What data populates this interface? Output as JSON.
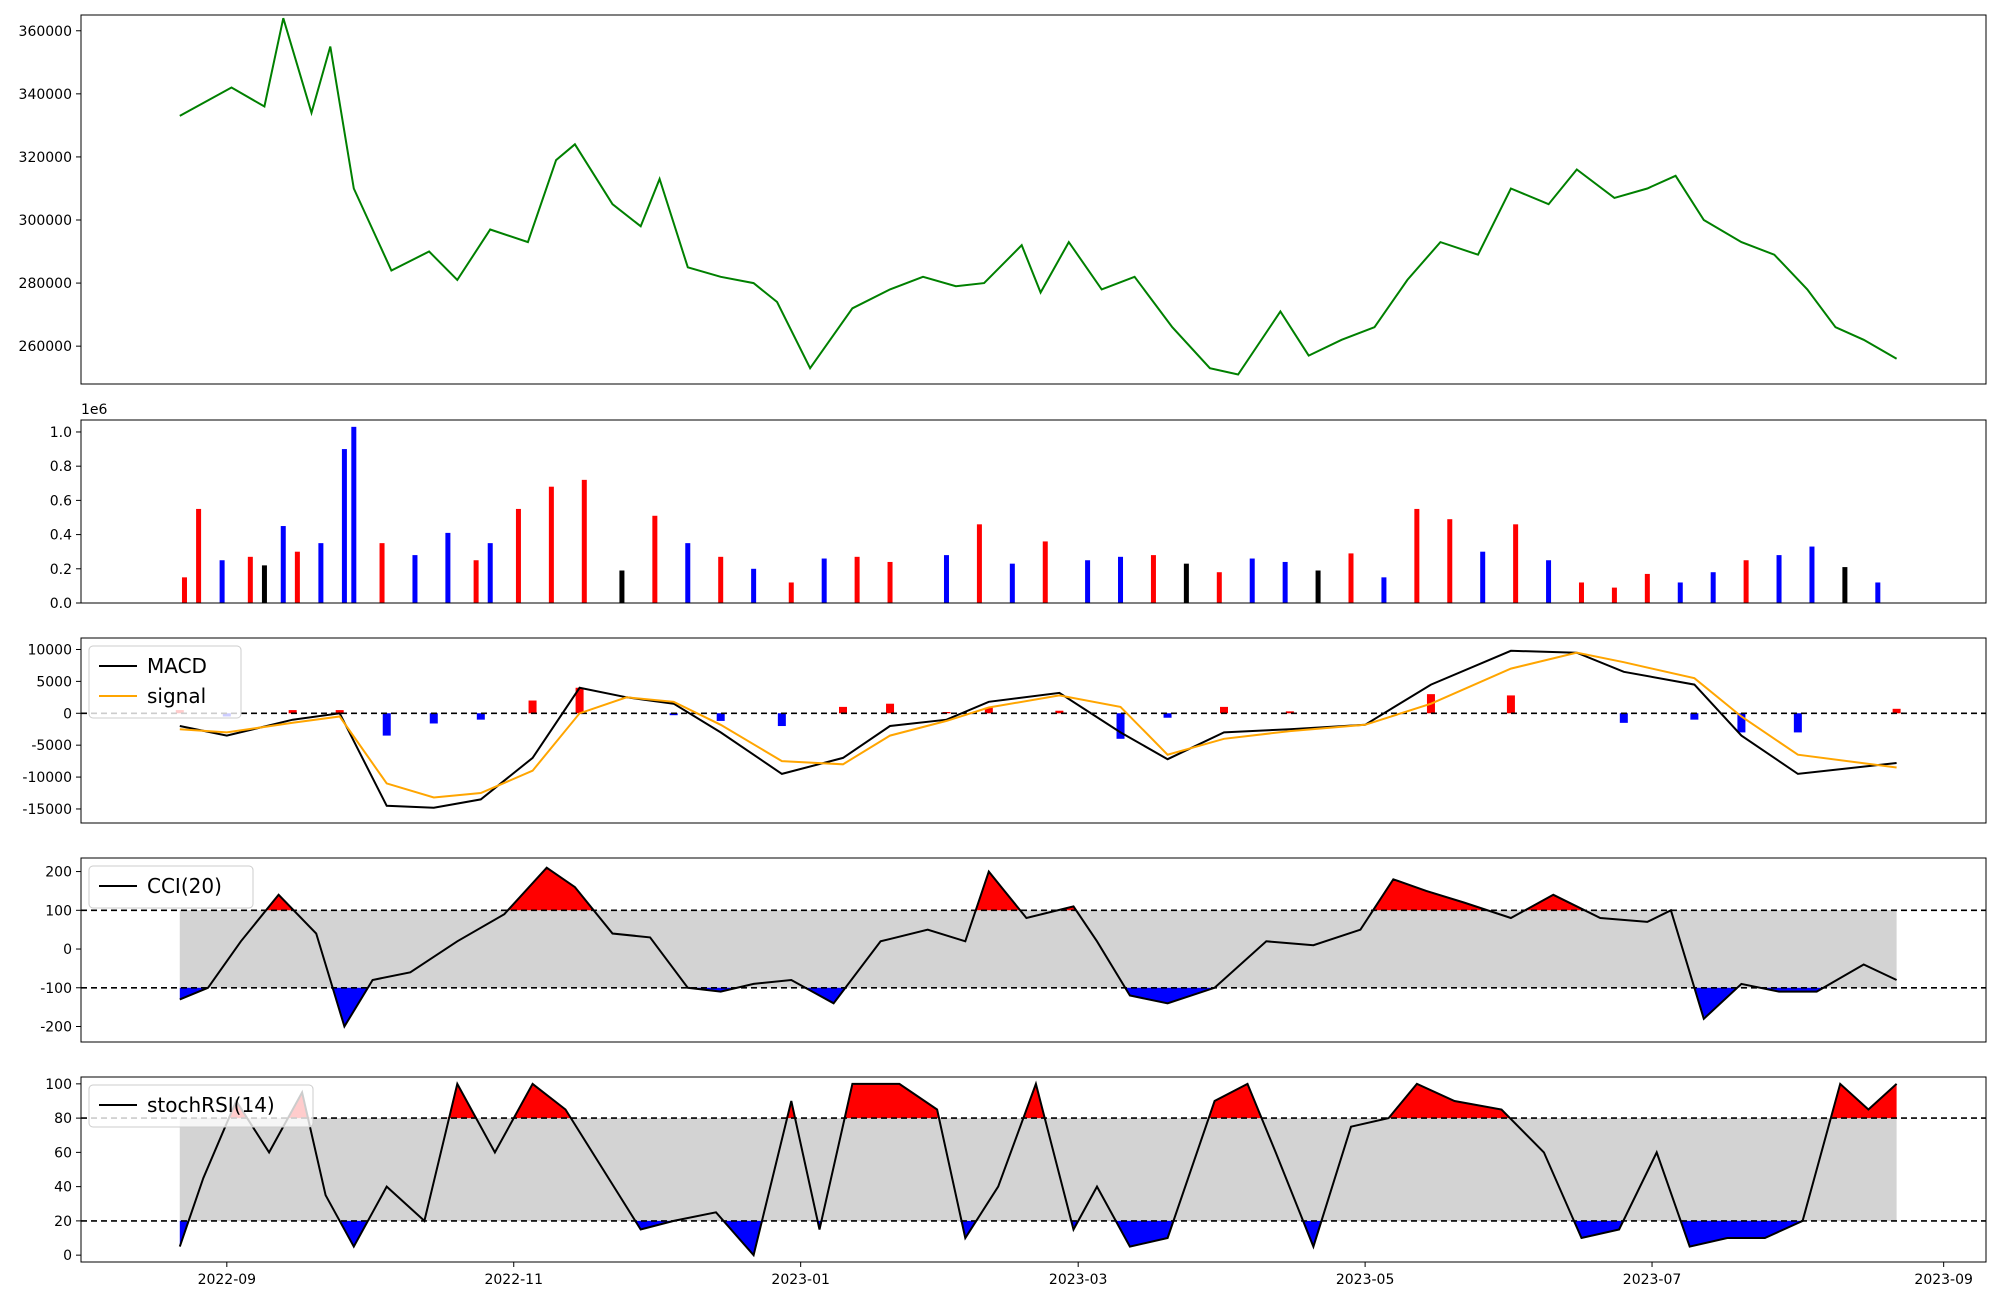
{
  "x_tick_labels": [
    "2022-09",
    "2022-11",
    "2023-01",
    "2023-03",
    "2023-05",
    "2023-07",
    "2023-09"
  ],
  "chart_data": [
    {
      "panel": "price",
      "type": "line",
      "color": "#008000",
      "ylim": [
        248000,
        365000
      ],
      "y_ticks": [
        "260000",
        "280000",
        "300000",
        "320000",
        "340000",
        "360000"
      ],
      "y_tick_values": [
        260000,
        280000,
        300000,
        320000,
        340000,
        360000
      ],
      "x": [
        "2022-08-22",
        "2022-09-02",
        "2022-09-09",
        "2022-09-13",
        "2022-09-19",
        "2022-09-23",
        "2022-09-28",
        "2022-10-06",
        "2022-10-14",
        "2022-10-20",
        "2022-10-27",
        "2022-11-04",
        "2022-11-10",
        "2022-11-14",
        "2022-11-22",
        "2022-11-28",
        "2022-12-02",
        "2022-12-08",
        "2022-12-15",
        "2022-12-22",
        "2022-12-27",
        "2023-01-03",
        "2023-01-12",
        "2023-01-20",
        "2023-01-27",
        "2023-02-03",
        "2023-02-09",
        "2023-02-17",
        "2023-02-21",
        "2023-02-27",
        "2023-03-06",
        "2023-03-13",
        "2023-03-21",
        "2023-03-29",
        "2023-04-04",
        "2023-04-13",
        "2023-04-19",
        "2023-04-26",
        "2023-05-03",
        "2023-05-10",
        "2023-05-17",
        "2023-05-25",
        "2023-06-01",
        "2023-06-09",
        "2023-06-15",
        "2023-06-23",
        "2023-06-30",
        "2023-07-06",
        "2023-07-12",
        "2023-07-20",
        "2023-07-27",
        "2023-08-03",
        "2023-08-09",
        "2023-08-15",
        "2023-08-22"
      ],
      "values": [
        333000,
        342000,
        336000,
        364000,
        334000,
        355000,
        310000,
        284000,
        290000,
        281000,
        297000,
        293000,
        319000,
        324000,
        305000,
        298000,
        313000,
        285000,
        282000,
        280000,
        274000,
        253000,
        272000,
        278000,
        282000,
        279000,
        280000,
        292000,
        277000,
        293000,
        278000,
        282000,
        266000,
        253000,
        251000,
        271000,
        257000,
        262000,
        266000,
        281000,
        293000,
        289000,
        310000,
        305000,
        316000,
        307000,
        310000,
        314000,
        300000,
        293000,
        289000,
        278000,
        266000,
        262000,
        256000
      ]
    },
    {
      "panel": "volume",
      "type": "bar",
      "offset_text": "1e6",
      "ylim": [
        0,
        1.07
      ],
      "y_ticks": [
        "0.0",
        "0.2",
        "0.4",
        "0.6",
        "0.8",
        "1.0"
      ],
      "y_tick_values": [
        0,
        0.2,
        0.4,
        0.6,
        0.8,
        1.0
      ],
      "bar_colors": {
        "up": "#ff0000",
        "down": "#0000ff",
        "neutral": "#000000"
      },
      "x": [
        "2022-08-23",
        "2022-08-26",
        "2022-08-31",
        "2022-09-06",
        "2022-09-09",
        "2022-09-13",
        "2022-09-16",
        "2022-09-21",
        "2022-09-26",
        "2022-09-28",
        "2022-10-04",
        "2022-10-11",
        "2022-10-18",
        "2022-10-24",
        "2022-10-27",
        "2022-11-02",
        "2022-11-09",
        "2022-11-16",
        "2022-11-24",
        "2022-12-01",
        "2022-12-08",
        "2022-12-15",
        "2022-12-22",
        "2022-12-30",
        "2023-01-06",
        "2023-01-13",
        "2023-01-20",
        "2023-02-01",
        "2023-02-08",
        "2023-02-15",
        "2023-02-22",
        "2023-03-03",
        "2023-03-10",
        "2023-03-17",
        "2023-03-24",
        "2023-03-31",
        "2023-04-07",
        "2023-04-14",
        "2023-04-21",
        "2023-04-28",
        "2023-05-05",
        "2023-05-12",
        "2023-05-19",
        "2023-05-26",
        "2023-06-02",
        "2023-06-09",
        "2023-06-16",
        "2023-06-23",
        "2023-06-30",
        "2023-07-07",
        "2023-07-14",
        "2023-07-21",
        "2023-07-28",
        "2023-08-04",
        "2023-08-11",
        "2023-08-18"
      ],
      "values": [
        0.15,
        0.55,
        0.25,
        0.27,
        0.22,
        0.45,
        0.3,
        0.35,
        0.9,
        1.03,
        0.35,
        0.28,
        0.41,
        0.25,
        0.35,
        0.55,
        0.68,
        0.72,
        0.19,
        0.51,
        0.35,
        0.27,
        0.2,
        0.12,
        0.26,
        0.27,
        0.24,
        0.28,
        0.46,
        0.23,
        0.36,
        0.25,
        0.27,
        0.28,
        0.23,
        0.18,
        0.26,
        0.24,
        0.19,
        0.29,
        0.15,
        0.55,
        0.49,
        0.3,
        0.46,
        0.25,
        0.12,
        0.09,
        0.17,
        0.12,
        0.18,
        0.25,
        0.28,
        0.33,
        0.21,
        0.12
      ],
      "colors": [
        "up",
        "up",
        "down",
        "up",
        "neutral",
        "down",
        "up",
        "down",
        "down",
        "down",
        "up",
        "down",
        "down",
        "up",
        "down",
        "up",
        "up",
        "up",
        "neutral",
        "up",
        "down",
        "up",
        "down",
        "up",
        "down",
        "up",
        "up",
        "down",
        "up",
        "down",
        "up",
        "down",
        "down",
        "up",
        "neutral",
        "up",
        "down",
        "down",
        "neutral",
        "up",
        "down",
        "up",
        "up",
        "down",
        "up",
        "down",
        "up",
        "up",
        "up",
        "down",
        "down",
        "up",
        "down",
        "down",
        "neutral",
        "down"
      ]
    },
    {
      "panel": "macd",
      "type": "line",
      "ylim": [
        -17200,
        11800
      ],
      "y_ticks": [
        "10000",
        "5000",
        "0",
        "-5000",
        "-10000",
        "-15000"
      ],
      "y_tick_values": [
        10000,
        5000,
        0,
        -5000,
        -10000,
        -15000
      ],
      "zero_line": 0,
      "legend": {
        "position": "top-left",
        "entries": [
          "MACD",
          "signal"
        ]
      },
      "x": [
        "2022-08-22",
        "2022-09-01",
        "2022-09-15",
        "2022-09-25",
        "2022-10-05",
        "2022-10-15",
        "2022-10-25",
        "2022-11-05",
        "2022-11-15",
        "2022-11-25",
        "2022-12-05",
        "2022-12-15",
        "2022-12-28",
        "2023-01-10",
        "2023-01-20",
        "2023-02-01",
        "2023-02-10",
        "2023-02-25",
        "2023-03-10",
        "2023-03-20",
        "2023-04-01",
        "2023-04-15",
        "2023-05-01",
        "2023-05-15",
        "2023-06-01",
        "2023-06-15",
        "2023-06-25",
        "2023-07-10",
        "2023-07-20",
        "2023-08-01",
        "2023-08-22"
      ],
      "series": [
        {
          "name": "MACD",
          "color": "#000000",
          "values": [
            -2000,
            -3500,
            -1000,
            0,
            -14500,
            -14800,
            -13500,
            -7000,
            4000,
            2500,
            1500,
            -3000,
            -9500,
            -7000,
            -2000,
            -1000,
            1800,
            3200,
            -3000,
            -7200,
            -3000,
            -2500,
            -1800,
            4500,
            9800,
            9500,
            6500,
            4500,
            -3500,
            -9500,
            -7800
          ]
        },
        {
          "name": "signal",
          "color": "#ffa500",
          "values": [
            -2500,
            -3000,
            -1500,
            -500,
            -11000,
            -13200,
            -12500,
            -9000,
            0,
            2500,
            1800,
            -1800,
            -7500,
            -8000,
            -3500,
            -1200,
            900,
            2800,
            1000,
            -6500,
            -4000,
            -2800,
            -1800,
            1500,
            7000,
            9500,
            8000,
            5500,
            -500,
            -6500,
            -8500
          ]
        },
        {
          "name": "hist",
          "values": [
            500,
            -500,
            500,
            500,
            -3500,
            -1600,
            -1000,
            2000,
            4000,
            0,
            -300,
            -1200,
            -2000,
            1000,
            1500,
            200,
            900,
            400,
            -4000,
            -700,
            1000,
            300,
            0,
            3000,
            2800,
            0,
            -1500,
            -1000,
            -3000,
            -3000,
            700
          ]
        }
      ]
    },
    {
      "panel": "cci",
      "type": "line",
      "ylim": [
        -240,
        235
      ],
      "y_ticks": [
        "200",
        "100",
        "0",
        "-100",
        "-200"
      ],
      "y_tick_values": [
        200,
        100,
        0,
        -100,
        -200
      ],
      "band": [
        -100,
        100
      ],
      "legend": {
        "position": "top-left",
        "entries": [
          "CCI(20)"
        ]
      },
      "x": [
        "2022-08-22",
        "2022-08-28",
        "2022-09-04",
        "2022-09-12",
        "2022-09-20",
        "2022-09-26",
        "2022-10-02",
        "2022-10-10",
        "2022-10-20",
        "2022-10-30",
        "2022-11-08",
        "2022-11-14",
        "2022-11-22",
        "2022-11-30",
        "2022-12-08",
        "2022-12-15",
        "2022-12-22",
        "2022-12-30",
        "2023-01-08",
        "2023-01-18",
        "2023-01-28",
        "2023-02-05",
        "2023-02-10",
        "2023-02-18",
        "2023-02-28",
        "2023-03-05",
        "2023-03-12",
        "2023-03-20",
        "2023-03-30",
        "2023-04-10",
        "2023-04-20",
        "2023-04-30",
        "2023-05-07",
        "2023-05-14",
        "2023-05-22",
        "2023-06-01",
        "2023-06-10",
        "2023-06-20",
        "2023-06-30",
        "2023-07-05",
        "2023-07-12",
        "2023-07-20",
        "2023-07-28",
        "2023-08-05",
        "2023-08-15",
        "2023-08-22"
      ],
      "values": [
        -130,
        -100,
        20,
        140,
        40,
        -200,
        -80,
        -60,
        20,
        90,
        210,
        160,
        40,
        30,
        -100,
        -110,
        -90,
        -80,
        -140,
        20,
        50,
        20,
        200,
        80,
        110,
        20,
        -120,
        -140,
        -100,
        20,
        10,
        50,
        180,
        150,
        120,
        80,
        140,
        80,
        70,
        100,
        -180,
        -90,
        -110,
        -110,
        -40,
        -80
      ]
    },
    {
      "panel": "stochrsi",
      "type": "line",
      "ylim": [
        -4,
        104
      ],
      "y_ticks": [
        "100",
        "80",
        "60",
        "40",
        "20",
        "0"
      ],
      "y_tick_values": [
        100,
        80,
        60,
        40,
        20,
        0
      ],
      "band": [
        20,
        80
      ],
      "legend": {
        "position": "top-left",
        "entries": [
          "stochRSI(14)"
        ]
      },
      "x": [
        "2022-08-22",
        "2022-08-27",
        "2022-09-03",
        "2022-09-10",
        "2022-09-17",
        "2022-09-22",
        "2022-09-28",
        "2022-10-05",
        "2022-10-13",
        "2022-10-20",
        "2022-10-28",
        "2022-11-05",
        "2022-11-12",
        "2022-11-20",
        "2022-11-28",
        "2022-12-05",
        "2022-12-14",
        "2022-12-22",
        "2022-12-30",
        "2023-01-05",
        "2023-01-12",
        "2023-01-22",
        "2023-01-30",
        "2023-02-05",
        "2023-02-12",
        "2023-02-20",
        "2023-02-28",
        "2023-03-05",
        "2023-03-12",
        "2023-03-20",
        "2023-03-30",
        "2023-04-06",
        "2023-04-12",
        "2023-04-20",
        "2023-04-28",
        "2023-05-06",
        "2023-05-12",
        "2023-05-20",
        "2023-05-30",
        "2023-06-08",
        "2023-06-16",
        "2023-06-24",
        "2023-07-02",
        "2023-07-09",
        "2023-07-17",
        "2023-07-25",
        "2023-08-02",
        "2023-08-10",
        "2023-08-16",
        "2023-08-22"
      ],
      "values": [
        5,
        45,
        90,
        60,
        95,
        35,
        5,
        40,
        20,
        100,
        60,
        100,
        85,
        50,
        15,
        20,
        25,
        0,
        90,
        15,
        100,
        100,
        85,
        10,
        40,
        100,
        15,
        40,
        5,
        10,
        90,
        100,
        60,
        5,
        75,
        80,
        100,
        90,
        85,
        60,
        10,
        15,
        60,
        5,
        10,
        10,
        20,
        100,
        85,
        100
      ]
    }
  ]
}
